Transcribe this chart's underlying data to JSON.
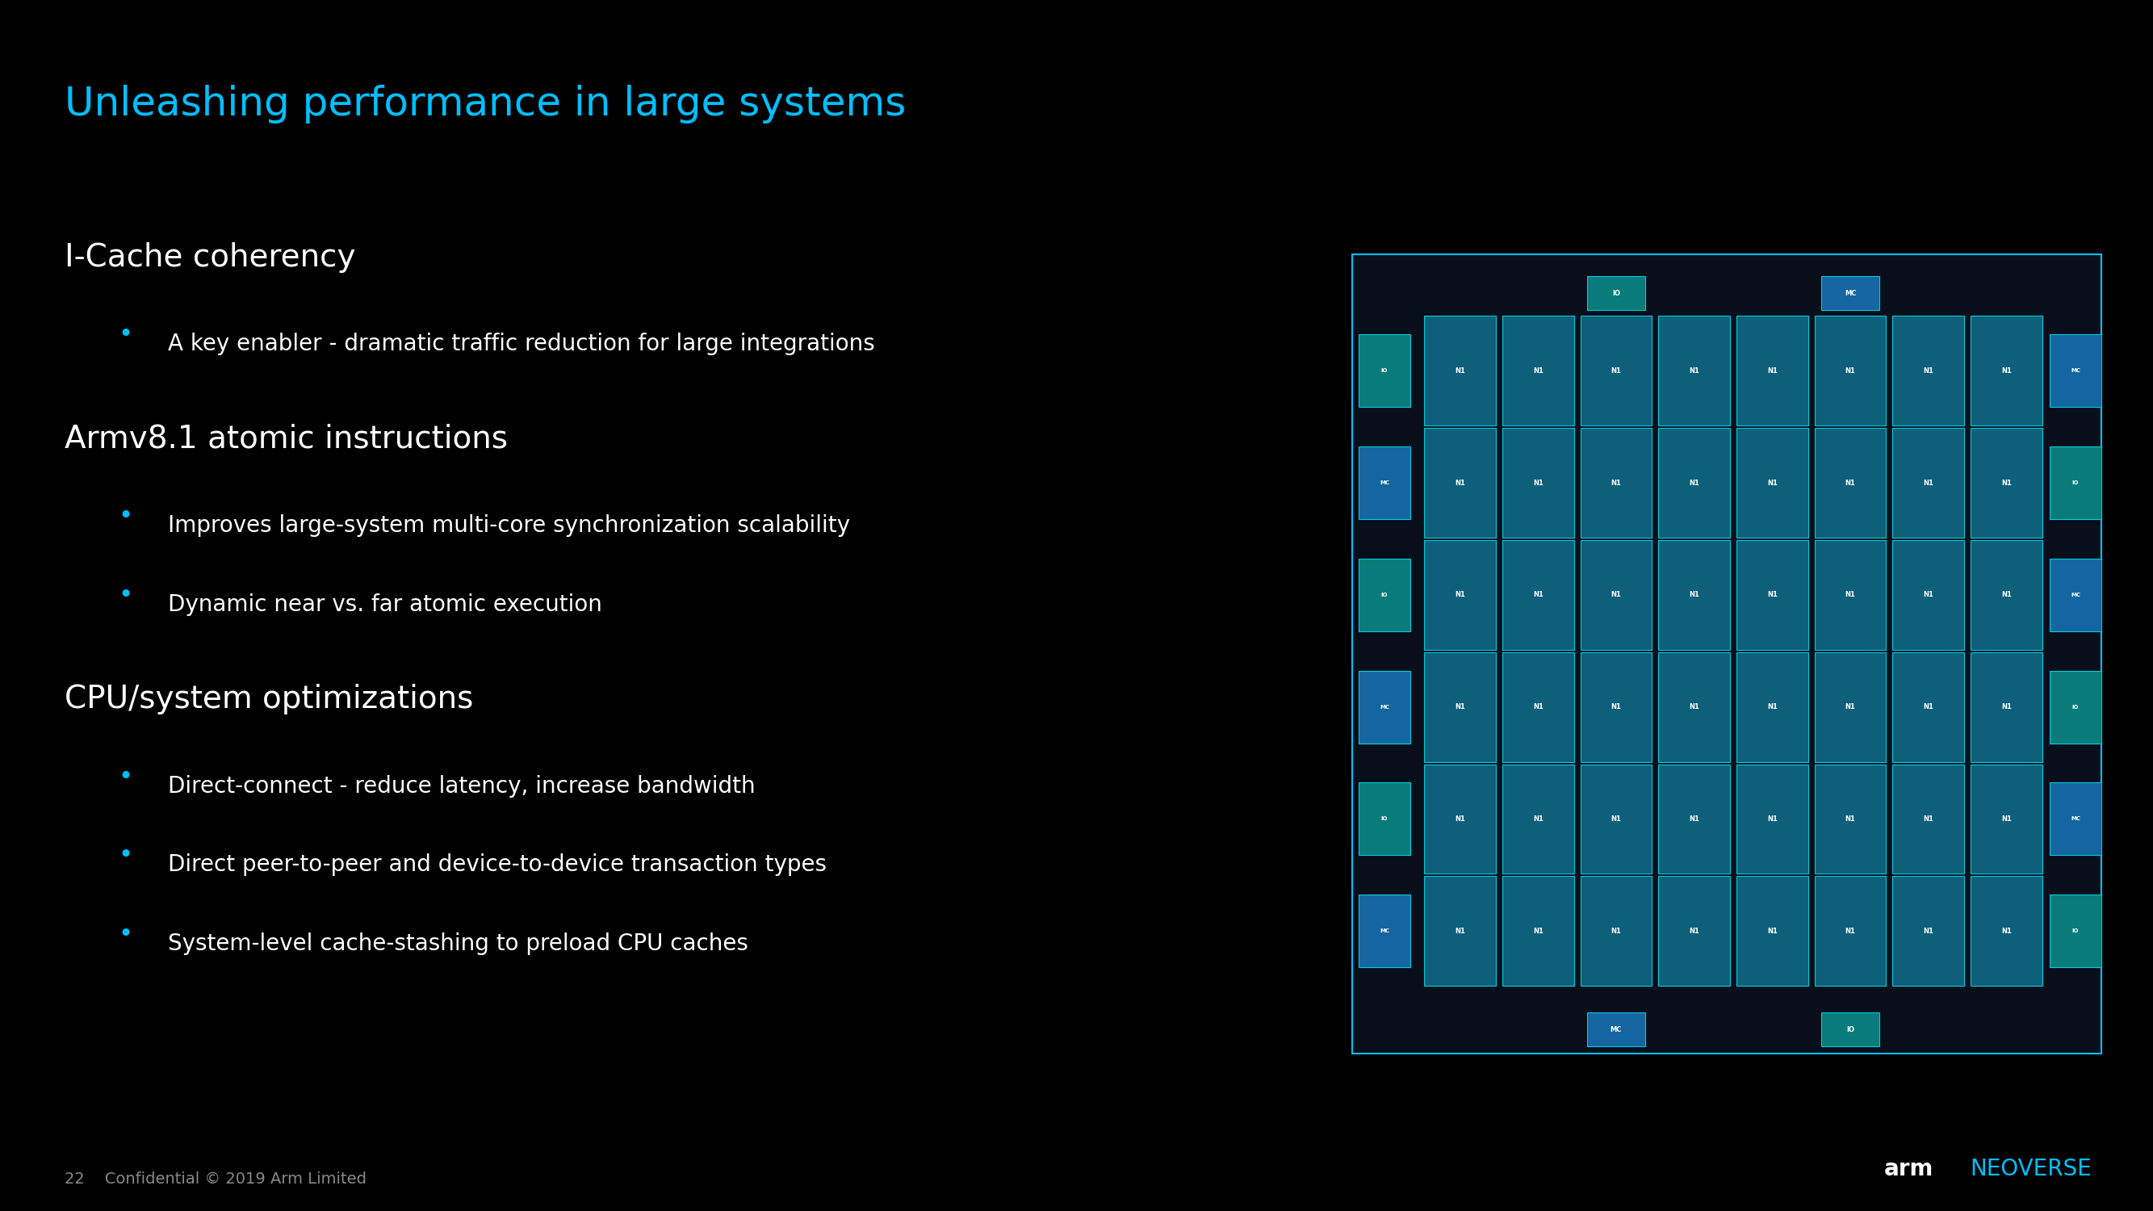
{
  "background_color": "#000000",
  "title": "Unleashing performance in large systems",
  "title_color": "#00BFFF",
  "title_fontsize": 36,
  "sections": [
    {
      "heading": "I-Cache coherency",
      "heading_color": "#FFFFFF",
      "heading_fontsize": 28,
      "bullets": [
        "A key enabler - dramatic traffic reduction for large integrations"
      ]
    },
    {
      "heading": "Armv8.1 atomic instructions",
      "heading_color": "#FFFFFF",
      "heading_fontsize": 28,
      "bullets": [
        "Improves large-system multi-core synchronization scalability",
        "Dynamic near vs. far atomic execution"
      ]
    },
    {
      "heading": "CPU/system optimizations",
      "heading_color": "#FFFFFF",
      "heading_fontsize": 28,
      "bullets": [
        "Direct-connect - reduce latency, increase bandwidth",
        "Direct peer-to-peer and device-to-device transaction types",
        "System-level cache-stashing to preload CPU caches"
      ]
    }
  ],
  "bullet_color": "#FFFFFF",
  "bullet_fontsize": 20,
  "bullet_dot_color": "#00BFFF",
  "footer_left": "22    Confidential © 2019 Arm Limited",
  "footer_color": "#888888",
  "footer_fontsize": 14,
  "arm_text_color": "#FFFFFF",
  "neoverse_text_color": "#00BFFF",
  "n1_box_color": "#0E5F7A",
  "n1_border_color": "#00CCDD",
  "io_box_color": "#0A7B7B",
  "mc_box_color": "#1565A0"
}
